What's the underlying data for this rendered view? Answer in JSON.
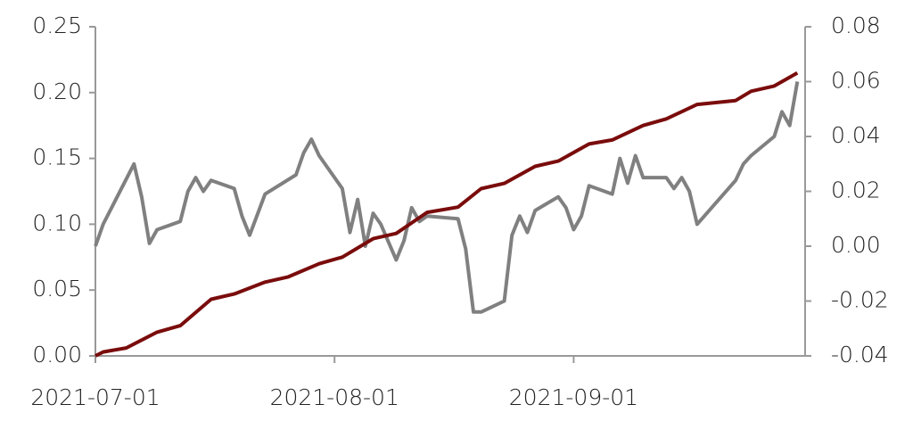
{
  "chart_data": {
    "type": "line",
    "xlim": [
      "2021-07-01",
      "2021-10-01"
    ],
    "xticks": [
      "2021-07-01",
      "2021-08-01",
      "2021-09-01"
    ],
    "ylim": [
      0,
      0.25
    ],
    "yticks": [
      0.0,
      0.05,
      0.1,
      0.15,
      0.2,
      0.25
    ],
    "y2lim": [
      -0.04,
      0.08
    ],
    "y2ticks": [
      -0.04,
      -0.02,
      0.0,
      0.02,
      0.04,
      0.06,
      0.08
    ],
    "series": [
      {
        "color": "#7a0c0c",
        "x": [
          "2021-07-01",
          "2021-07-02",
          "2021-07-05",
          "2021-07-09",
          "2021-07-12",
          "2021-07-16",
          "2021-07-19",
          "2021-07-23",
          "2021-07-26",
          "2021-07-30",
          "2021-08-02",
          "2021-08-06",
          "2021-08-09",
          "2021-08-13",
          "2021-08-17",
          "2021-08-20",
          "2021-08-23",
          "2021-08-27",
          "2021-08-30",
          "2021-09-03",
          "2021-09-06",
          "2021-09-10",
          "2021-09-13",
          "2021-09-17",
          "2021-09-22",
          "2021-09-24",
          "2021-09-27",
          "2021-09-30"
        ],
        "values": [
          0,
          0.003,
          0.006,
          0.018,
          0.023,
          0.043,
          0.047,
          0.056,
          0.06,
          0.07,
          0.075,
          0.089,
          0.093,
          0.109,
          0.113,
          0.127,
          0.131,
          0.144,
          0.148,
          0.161,
          0.164,
          0.175,
          0.18,
          0.191,
          0.194,
          0.201,
          0.205,
          0.215
        ]
      },
      {
        "color": "#808080",
        "axis": "y2",
        "x": [
          "2021-07-01",
          "2021-07-02",
          "2021-07-06",
          "2021-07-07",
          "2021-07-08",
          "2021-07-09",
          "2021-07-12",
          "2021-07-13",
          "2021-07-14",
          "2021-07-15",
          "2021-07-16",
          "2021-07-19",
          "2021-07-20",
          "2021-07-21",
          "2021-07-23",
          "2021-07-27",
          "2021-07-28",
          "2021-07-29",
          "2021-07-30",
          "2021-08-02",
          "2021-08-03",
          "2021-08-04",
          "2021-08-05",
          "2021-08-06",
          "2021-08-07",
          "2021-08-09",
          "2021-08-10",
          "2021-08-11",
          "2021-08-12",
          "2021-08-13",
          "2021-08-17",
          "2021-08-18",
          "2021-08-19",
          "2021-08-20",
          "2021-08-23",
          "2021-08-24",
          "2021-08-25",
          "2021-08-26",
          "2021-08-27",
          "2021-08-30",
          "2021-08-31",
          "2021-09-01",
          "2021-09-02",
          "2021-09-03",
          "2021-09-06",
          "2021-09-07",
          "2021-09-08",
          "2021-09-09",
          "2021-09-10",
          "2021-09-13",
          "2021-09-14",
          "2021-09-15",
          "2021-09-16",
          "2021-09-17",
          "2021-09-22",
          "2021-09-23",
          "2021-09-24",
          "2021-09-27",
          "2021-09-28",
          "2021-09-29",
          "2021-09-30"
        ],
        "values": [
          0.0,
          0.008,
          0.03,
          0.018,
          0.001,
          0.006,
          0.009,
          0.02,
          0.025,
          0.02,
          0.024,
          0.021,
          0.011,
          0.004,
          0.019,
          0.026,
          0.034,
          0.039,
          0.033,
          0.021,
          0.005,
          0.017,
          0.0,
          0.012,
          0.008,
          -0.005,
          0.002,
          0.014,
          0.009,
          0.011,
          0.01,
          -0.001,
          -0.024,
          -0.024,
          -0.02,
          0.004,
          0.011,
          0.005,
          0.013,
          0.018,
          0.014,
          0.006,
          0.011,
          0.022,
          0.019,
          0.032,
          0.023,
          0.033,
          0.025,
          0.025,
          0.021,
          0.025,
          0.02,
          0.008,
          0.024,
          0.03,
          0.033,
          0.04,
          0.049,
          0.044,
          0.06
        ]
      }
    ]
  }
}
